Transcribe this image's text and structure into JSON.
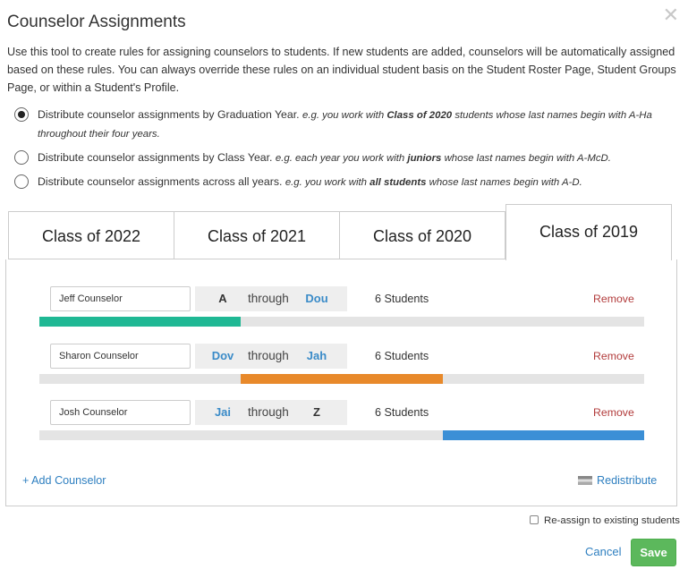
{
  "dialog": {
    "title": "Counselor Assignments",
    "description": "Use this tool to create rules for assigning counselors to students. If new students are added, counselors will be automatically assigned based on these rules. You can always override these rules on an individual student basis on the Student Roster Page, Student Groups Page, or within a Student's Profile.",
    "close_icon": "close-icon"
  },
  "options": [
    {
      "text": "Distribute counselor assignments by Graduation Year.",
      "eg_pre": "e.g. you work with ",
      "eg_bold": "Class of 2020",
      "eg_post": " students whose last names begin with A-Ha throughout their four years.",
      "selected": true
    },
    {
      "text": "Distribute counselor assignments by Class Year.",
      "eg_pre": "e.g. each year you work with ",
      "eg_bold": "juniors",
      "eg_post": " whose last names begin with A-McD.",
      "selected": false
    },
    {
      "text": "Distribute counselor assignments across all years.",
      "eg_pre": "e.g. you work with ",
      "eg_bold": "all students",
      "eg_post": " whose last names begin with A-D.",
      "selected": false
    }
  ],
  "tabs": [
    {
      "label": "Class of 2022",
      "active": false
    },
    {
      "label": "Class of 2021",
      "active": false
    },
    {
      "label": "Class of 2020",
      "active": false
    },
    {
      "label": "Class of 2019",
      "active": true
    }
  ],
  "counselors": [
    {
      "name": "Jeff Counselor",
      "from": "A",
      "through": "through",
      "to": "Dou",
      "count": "6 Students",
      "remove": "Remove",
      "color": "#1fb894",
      "share_start": 0,
      "share_end": 0.333
    },
    {
      "name": "Sharon Counselor",
      "from": "Dov",
      "through": "through",
      "to": "Jah",
      "count": "6 Students",
      "remove": "Remove",
      "color": "#e8892a",
      "share_start": 0.333,
      "share_end": 0.667
    },
    {
      "name": "Josh Counselor",
      "from": "Jai",
      "through": "through",
      "to": "Z",
      "count": "6 Students",
      "remove": "Remove",
      "color": "#3b8fd6",
      "share_start": 0.667,
      "share_end": 1
    }
  ],
  "actions": {
    "add_counselor": "+ Add Counselor",
    "redistribute": "Redistribute",
    "reassign_label": "Re-assign to existing students",
    "cancel": "Cancel",
    "save": "Save"
  },
  "colors": {
    "link": "#2e7fc0",
    "remove": "#b23b3b",
    "save": "#5cb85c"
  }
}
